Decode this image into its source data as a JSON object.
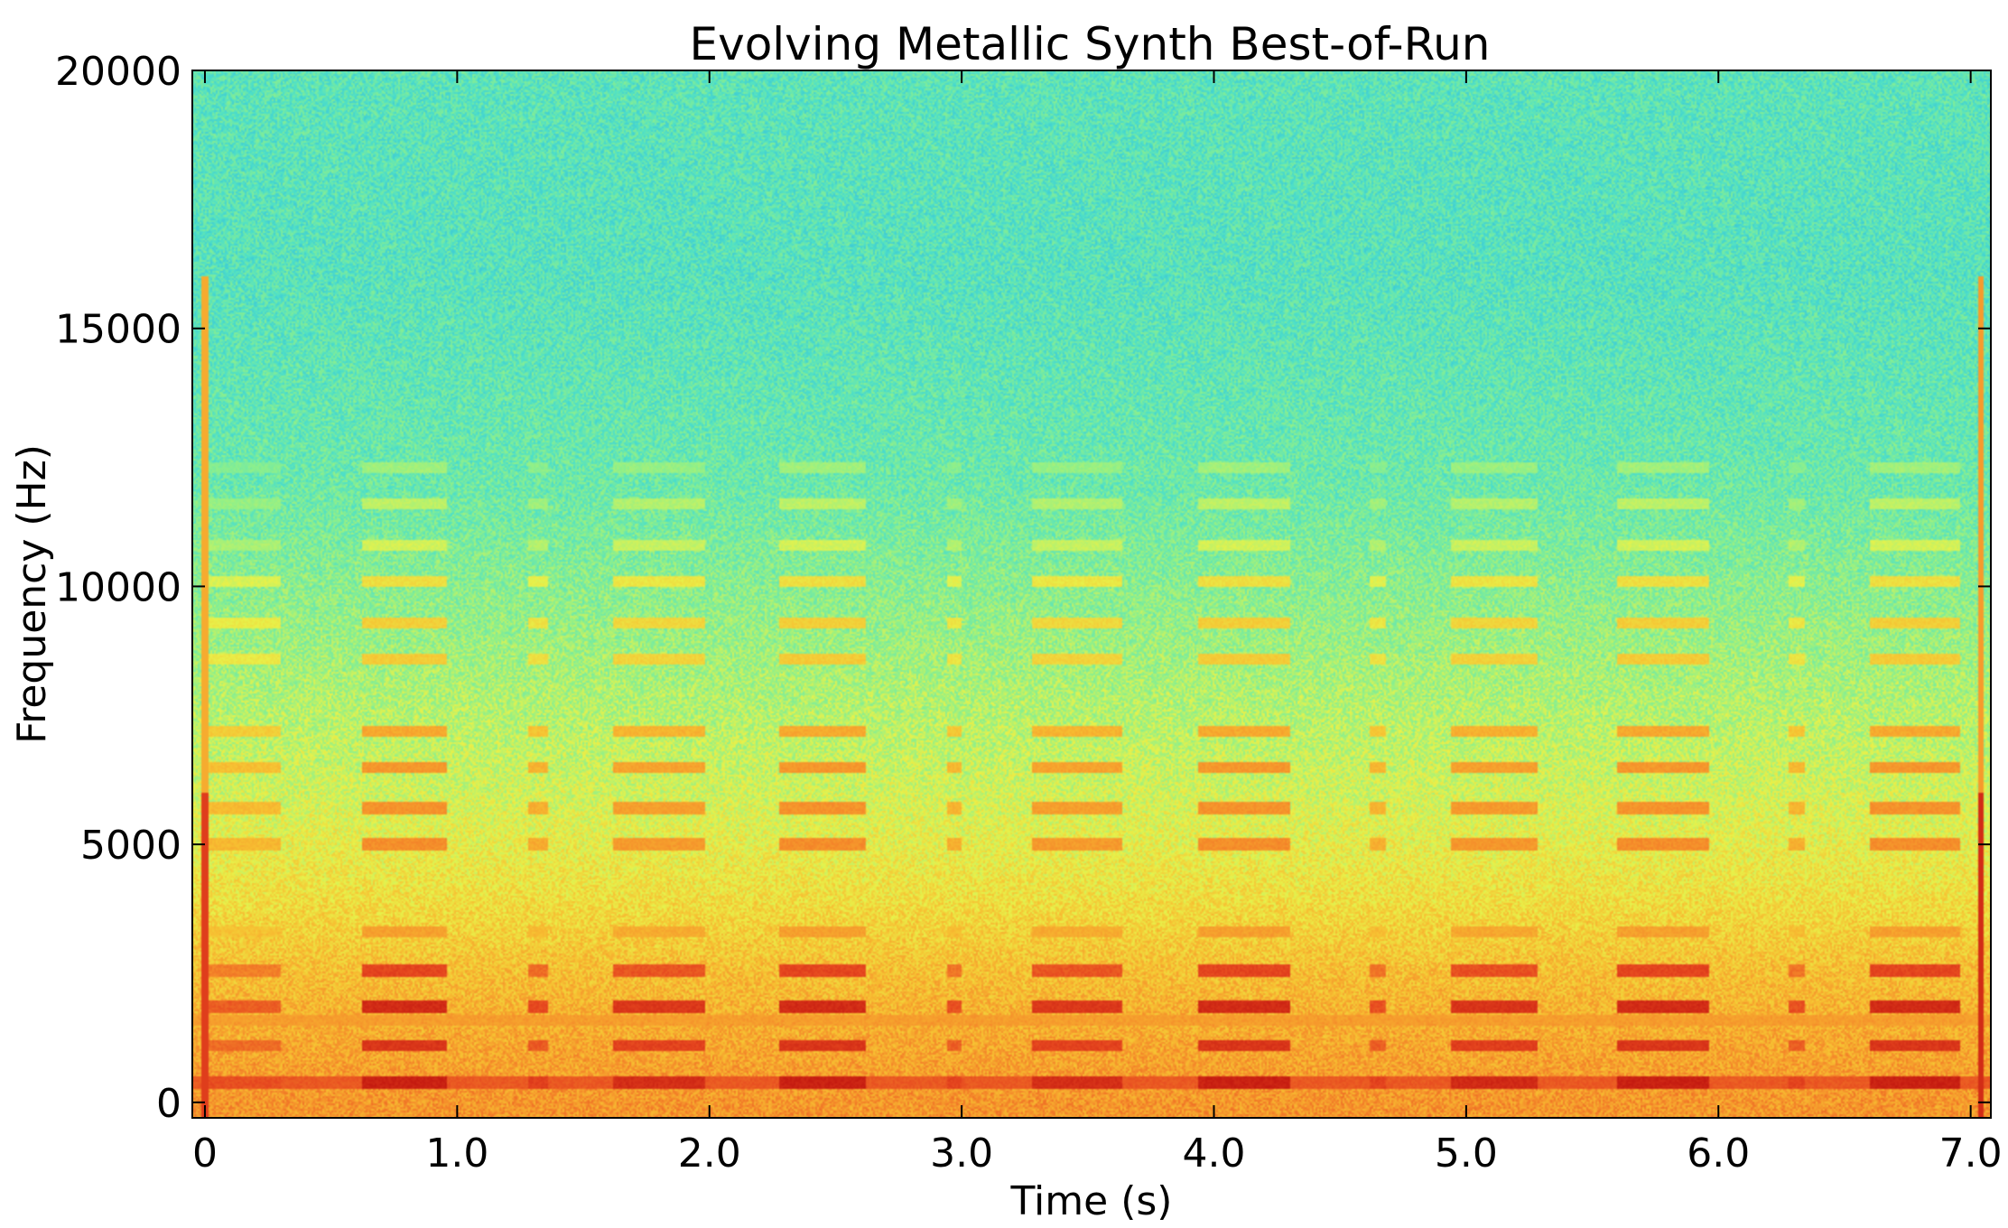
{
  "chart_data": {
    "type": "heatmap",
    "title": "Evolving Metallic Synth Best-of-Run",
    "xlabel": "Time (s)",
    "ylabel": "Frequency (Hz)",
    "xlim": [
      -0.05,
      7.08
    ],
    "ylim": [
      -300,
      20000
    ],
    "x_ticks": [
      0,
      1,
      2,
      3,
      4,
      5,
      6,
      7
    ],
    "x_tick_labels": [
      "0",
      "1.0",
      "2.0",
      "3.0",
      "4.0",
      "5.0",
      "6.0",
      "7.0"
    ],
    "y_ticks": [
      0,
      5000,
      10000,
      15000,
      20000
    ],
    "y_tick_labels": [
      "0",
      "5000",
      "10000",
      "15000",
      "20000"
    ],
    "grid": false,
    "legend": "none",
    "colormap": [
      "#1a73d9",
      "#2fb5e3",
      "#4ee0c8",
      "#8ff08a",
      "#e8f24a",
      "#f7c132",
      "#f58a2a",
      "#e6461f",
      "#c41a10"
    ],
    "background_profile_hz": [
      {
        "hz": 0,
        "level": 0.72
      },
      {
        "hz": 1200,
        "level": 0.68
      },
      {
        "hz": 2500,
        "level": 0.63
      },
      {
        "hz": 4000,
        "level": 0.55
      },
      {
        "hz": 6000,
        "level": 0.47
      },
      {
        "hz": 9000,
        "level": 0.39
      },
      {
        "hz": 12000,
        "level": 0.31
      },
      {
        "hz": 16000,
        "level": 0.27
      },
      {
        "hz": 20000,
        "level": 0.28
      }
    ],
    "notes": [
      {
        "start": 0.0,
        "end": 0.3,
        "strength": 0.5
      },
      {
        "start": 0.62,
        "end": 0.96,
        "strength": 1.0
      },
      {
        "start": 1.28,
        "end": 1.36,
        "strength": 0.65
      },
      {
        "start": 1.62,
        "end": 1.98,
        "strength": 0.85
      },
      {
        "start": 2.28,
        "end": 2.62,
        "strength": 1.0
      },
      {
        "start": 2.94,
        "end": 3.0,
        "strength": 0.6
      },
      {
        "start": 3.28,
        "end": 3.64,
        "strength": 0.85
      },
      {
        "start": 3.94,
        "end": 4.3,
        "strength": 1.0
      },
      {
        "start": 4.62,
        "end": 4.68,
        "strength": 0.6
      },
      {
        "start": 4.94,
        "end": 5.28,
        "strength": 0.9
      },
      {
        "start": 5.6,
        "end": 5.96,
        "strength": 1.0
      },
      {
        "start": 6.28,
        "end": 6.34,
        "strength": 0.6
      },
      {
        "start": 6.6,
        "end": 6.96,
        "strength": 1.0
      }
    ],
    "harmonics_hz": [
      {
        "hz": 380,
        "level": 0.98
      },
      {
        "hz": 1100,
        "level": 0.92
      },
      {
        "hz": 1850,
        "level": 0.95
      },
      {
        "hz": 2550,
        "level": 0.88
      },
      {
        "hz": 3300,
        "level": 0.7
      },
      {
        "hz": 5000,
        "level": 0.74
      },
      {
        "hz": 5700,
        "level": 0.73
      },
      {
        "hz": 6500,
        "level": 0.72
      },
      {
        "hz": 7200,
        "level": 0.68
      },
      {
        "hz": 8600,
        "level": 0.6
      },
      {
        "hz": 9300,
        "level": 0.59
      },
      {
        "hz": 10100,
        "level": 0.55
      },
      {
        "hz": 10800,
        "level": 0.47
      },
      {
        "hz": 11600,
        "level": 0.44
      },
      {
        "hz": 12300,
        "level": 0.4
      }
    ],
    "continuous_bands_hz": [
      {
        "hz": 380,
        "level": 0.84
      },
      {
        "hz": 1600,
        "level": 0.7
      }
    ],
    "transients_s": [
      {
        "t": 0.0,
        "level": 0.9
      },
      {
        "t": 7.04,
        "level": 0.95
      }
    ]
  }
}
